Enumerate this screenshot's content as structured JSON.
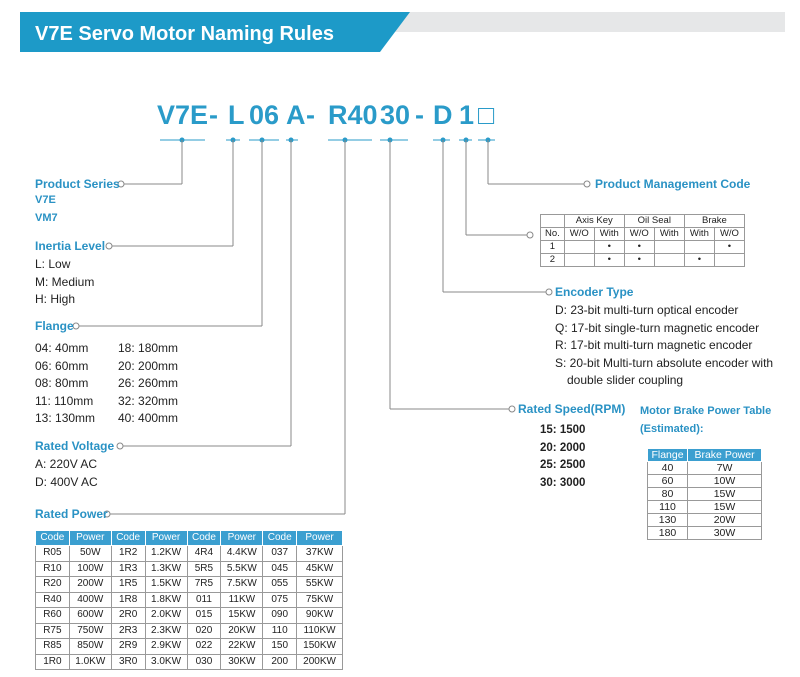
{
  "header": {
    "title": "V7E Servo Motor Naming Rules"
  },
  "model_code": {
    "segments": [
      "V7E",
      "-",
      "L",
      "06",
      "A",
      "-",
      "R40",
      "30",
      "-",
      "D",
      "1",
      "□"
    ]
  },
  "product_series": {
    "title": "Product Series",
    "items": [
      "V7E",
      "VM7"
    ]
  },
  "inertia_level": {
    "title": "Inertia Level",
    "items": [
      "L: Low",
      "M: Medium",
      "H: High"
    ]
  },
  "flange": {
    "title": "Flange",
    "columns": [
      [
        "04: 40mm",
        "06: 60mm",
        "08: 80mm",
        "11: 110mm",
        "13: 130mm"
      ],
      [
        "18: 180mm",
        "20: 200mm",
        "26: 260mm",
        "32: 320mm",
        "40: 400mm"
      ]
    ]
  },
  "rated_voltage": {
    "title": "Rated Voltage",
    "items": [
      "A:  220V AC",
      "D:  400V AC"
    ]
  },
  "rated_power": {
    "title": "Rated Power",
    "table": {
      "header": [
        "Code",
        "Power",
        "Code",
        "Power",
        "Code",
        "Power",
        "Code",
        "Power"
      ],
      "rows": [
        [
          "R05",
          "50W",
          "1R2",
          "1.2KW",
          "4R4",
          "4.4KW",
          "037",
          "37KW"
        ],
        [
          "R10",
          "100W",
          "1R3",
          "1.3KW",
          "5R5",
          "5.5KW",
          "045",
          "45KW"
        ],
        [
          "R20",
          "200W",
          "1R5",
          "1.5KW",
          "7R5",
          "7.5KW",
          "055",
          "55KW"
        ],
        [
          "R40",
          "400W",
          "1R8",
          "1.8KW",
          "011",
          "11KW",
          "075",
          "75KW"
        ],
        [
          "R60",
          "600W",
          "2R0",
          "2.0KW",
          "015",
          "15KW",
          "090",
          "90KW"
        ],
        [
          "R75",
          "750W",
          "2R3",
          "2.3KW",
          "020",
          "20KW",
          "110",
          "110KW"
        ],
        [
          "R85",
          "850W",
          "2R9",
          "2.9KW",
          "022",
          "22KW",
          "150",
          "150KW"
        ],
        [
          "1R0",
          "1.0KW",
          "3R0",
          "3.0KW",
          "030",
          "30KW",
          "200",
          "200KW"
        ]
      ]
    }
  },
  "product_management": {
    "title": "Product Management Code",
    "table": {
      "header_top": [
        "Axis Key",
        "Oil Seal",
        "Brake"
      ],
      "header_sub": [
        "No.",
        "W/O",
        "With",
        "W/O",
        "With",
        "With",
        "W/O"
      ],
      "rows": [
        [
          "1",
          null,
          "•",
          "•",
          null,
          null,
          "•"
        ],
        [
          "2",
          null,
          "•",
          "•",
          null,
          "•",
          null
        ]
      ]
    }
  },
  "encoder_type": {
    "title": "Encoder Type",
    "items": [
      "D: 23-bit multi-turn optical encoder",
      "Q: 17-bit single-turn magnetic encoder",
      "R: 17-bit multi-turn magnetic encoder",
      "S: 20-bit Multi-turn absolute encoder with double slider coupling"
    ]
  },
  "rated_speed": {
    "title": "Rated Speed(RPM)",
    "items": [
      "15: 1500",
      "20: 2000",
      "25: 2500",
      "30: 3000"
    ]
  },
  "brake_power": {
    "title": [
      "Motor Brake Power Table",
      "(Estimated):"
    ],
    "table": {
      "header": [
        "Flange",
        "Brake Power"
      ],
      "rows": [
        [
          "40",
          "7W"
        ],
        [
          "60",
          "10W"
        ],
        [
          "80",
          "15W"
        ],
        [
          "110",
          "15W"
        ],
        [
          "130",
          "20W"
        ],
        [
          "180",
          "30W"
        ]
      ]
    }
  }
}
